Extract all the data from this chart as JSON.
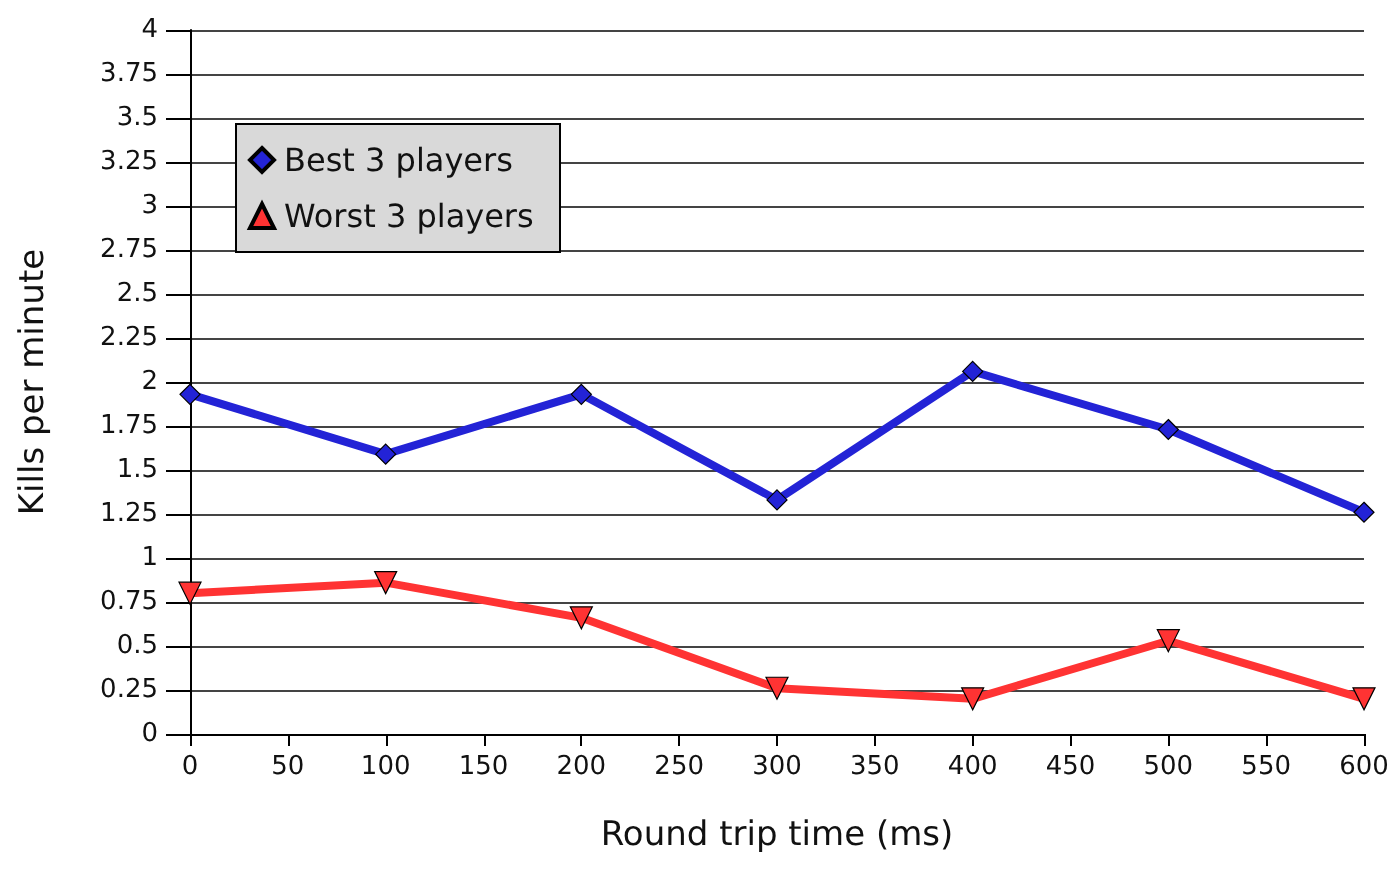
{
  "chart_data": {
    "type": "line",
    "xlabel": "Round trip time (ms)",
    "ylabel": "Kills per minute",
    "x": [
      0,
      100,
      200,
      300,
      400,
      500,
      600
    ],
    "series": [
      {
        "name": "Best 3 players",
        "color": "#2323d6",
        "marker": "diamond",
        "values": [
          1.93,
          1.59,
          1.93,
          1.33,
          2.06,
          1.73,
          1.26
        ]
      },
      {
        "name": "Worst 3 players",
        "color": "#ff3333",
        "marker": "triangle",
        "values": [
          0.8,
          0.86,
          0.66,
          0.26,
          0.2,
          0.53,
          0.2
        ]
      }
    ],
    "xlim": [
      0,
      600
    ],
    "xticks": [
      0,
      50,
      100,
      150,
      200,
      250,
      300,
      350,
      400,
      450,
      500,
      550,
      600
    ],
    "ylim": [
      0,
      4
    ],
    "yticks": [
      0,
      0.25,
      0.5,
      0.75,
      1,
      1.25,
      1.5,
      1.75,
      2,
      2.25,
      2.5,
      2.75,
      3,
      3.25,
      3.5,
      3.75,
      4
    ],
    "grid": "y",
    "legend": "top left",
    "line_style": "solid"
  }
}
